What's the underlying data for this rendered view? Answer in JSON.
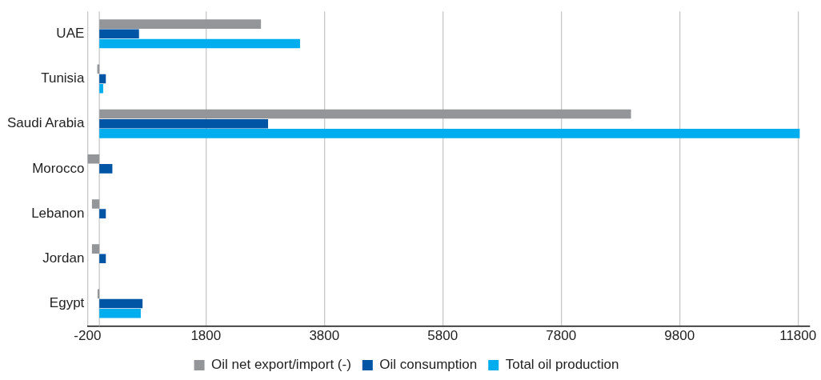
{
  "chart_data": {
    "type": "bar",
    "orientation": "horizontal",
    "categories": [
      "UAE",
      "Tunisia",
      "Saudi Arabia",
      "Morocco",
      "Lebanon",
      "Jordan",
      "Egypt"
    ],
    "series": [
      {
        "name": "Oil net export/import (-)",
        "color": "#939598",
        "values": [
          2730,
          -35,
          8980,
          -200,
          -125,
          -125,
          -30
        ]
      },
      {
        "name": "Oil consumption",
        "color": "#0055a4",
        "values": [
          670,
          110,
          2850,
          220,
          110,
          110,
          730
        ]
      },
      {
        "name": "Total oil production",
        "color": "#00aeef",
        "values": [
          3390,
          65,
          11830,
          null,
          null,
          null,
          700
        ]
      }
    ],
    "xlim": [
      -200,
      12000
    ],
    "xticks": [
      -200,
      1800,
      3800,
      5800,
      7800,
      9800,
      11800
    ],
    "grid": "x",
    "legend": "bottom"
  }
}
